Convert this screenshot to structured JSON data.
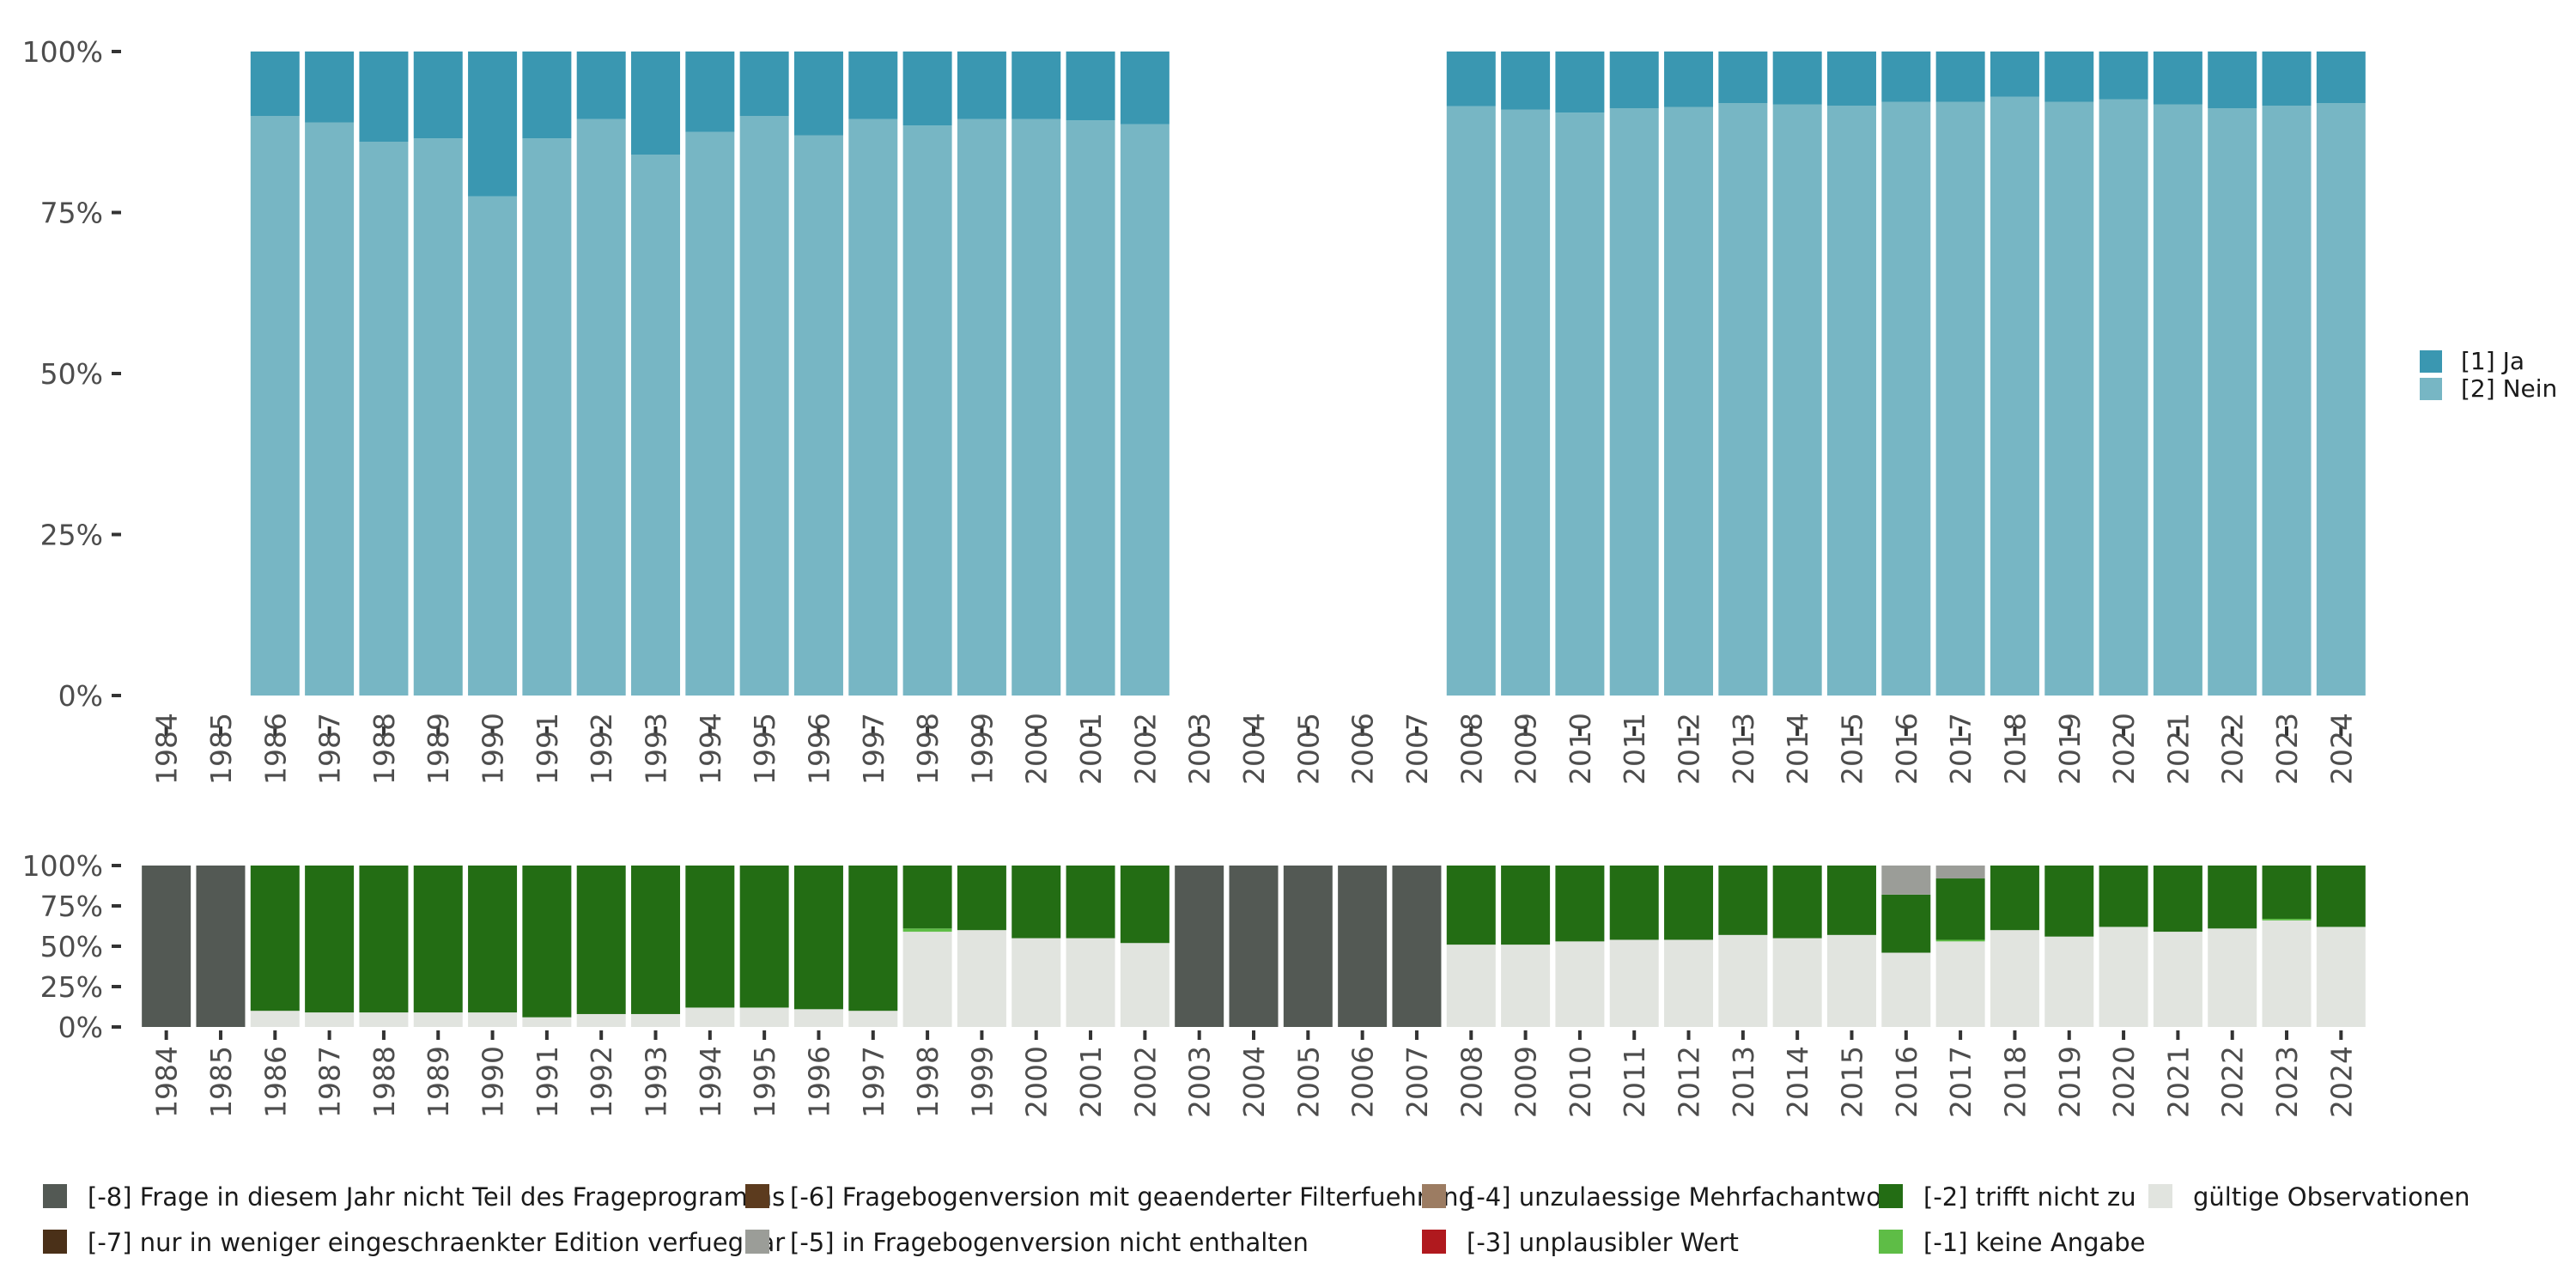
{
  "chart_data": [
    {
      "type": "bar",
      "stacked": true,
      "title": "",
      "xlabel": "",
      "ylabel": "",
      "ylim": [
        0,
        1
      ],
      "y_ticks": [
        "0%",
        "25%",
        "50%",
        "75%",
        "100%"
      ],
      "categories": [
        "1984",
        "1985",
        "1986",
        "1987",
        "1988",
        "1989",
        "1990",
        "1991",
        "1992",
        "1993",
        "1994",
        "1995",
        "1996",
        "1997",
        "1998",
        "1999",
        "2000",
        "2001",
        "2002",
        "2003",
        "2004",
        "2005",
        "2006",
        "2007",
        "2008",
        "2009",
        "2010",
        "2011",
        "2012",
        "2013",
        "2014",
        "2015",
        "2016",
        "2017",
        "2018",
        "2019",
        "2020",
        "2021",
        "2022",
        "2023",
        "2024"
      ],
      "series": [
        {
          "name": "[2] Nein",
          "color": "#77b6c4",
          "values": [
            null,
            null,
            0.9,
            0.89,
            0.86,
            0.865,
            0.775,
            0.865,
            0.895,
            0.84,
            0.875,
            0.9,
            0.87,
            0.895,
            0.885,
            0.895,
            0.895,
            0.893,
            0.887,
            null,
            null,
            null,
            null,
            null,
            0.915,
            0.91,
            0.905,
            0.912,
            0.914,
            0.92,
            0.918,
            0.916,
            0.922,
            0.922,
            0.93,
            0.922,
            0.926,
            0.918,
            0.912,
            0.916,
            0.92
          ]
        },
        {
          "name": "[1] Ja",
          "color": "#3a97b1",
          "values": [
            null,
            null,
            0.1,
            0.11,
            0.14,
            0.135,
            0.225,
            0.135,
            0.105,
            0.16,
            0.125,
            0.1,
            0.13,
            0.105,
            0.115,
            0.105,
            0.105,
            0.107,
            0.113,
            null,
            null,
            null,
            null,
            null,
            0.085,
            0.09,
            0.095,
            0.088,
            0.086,
            0.08,
            0.082,
            0.084,
            0.078,
            0.078,
            0.07,
            0.078,
            0.074,
            0.082,
            0.088,
            0.084,
            0.08
          ]
        }
      ],
      "legend": {
        "position": "right",
        "entries": [
          "[1] Ja",
          "[2] Nein"
        ]
      }
    },
    {
      "type": "bar",
      "stacked": true,
      "title": "",
      "xlabel": "",
      "ylabel": "",
      "ylim": [
        0,
        1
      ],
      "y_ticks": [
        "0%",
        "25%",
        "50%",
        "75%",
        "100%"
      ],
      "categories": [
        "1984",
        "1985",
        "1986",
        "1987",
        "1988",
        "1989",
        "1990",
        "1991",
        "1992",
        "1993",
        "1994",
        "1995",
        "1996",
        "1997",
        "1998",
        "1999",
        "2000",
        "2001",
        "2002",
        "2003",
        "2004",
        "2005",
        "2006",
        "2007",
        "2008",
        "2009",
        "2010",
        "2011",
        "2012",
        "2013",
        "2014",
        "2015",
        "2016",
        "2017",
        "2018",
        "2019",
        "2020",
        "2021",
        "2022",
        "2023",
        "2024"
      ],
      "series": [
        {
          "name": "gültige Observationen",
          "color": "#e1e4df",
          "values": [
            0,
            0,
            0.1,
            0.09,
            0.09,
            0.09,
            0.09,
            0.06,
            0.08,
            0.08,
            0.12,
            0.12,
            0.11,
            0.1,
            0.59,
            0.6,
            0.55,
            0.55,
            0.52,
            0,
            0,
            0,
            0,
            0,
            0.51,
            0.51,
            0.53,
            0.54,
            0.54,
            0.57,
            0.55,
            0.57,
            0.46,
            0.53,
            0.6,
            0.56,
            0.62,
            0.59,
            0.61,
            0.66,
            0.62
          ]
        },
        {
          "name": "[-1] keine Angabe",
          "color": "#5ebd46",
          "values": [
            0,
            0,
            0,
            0,
            0,
            0,
            0,
            0,
            0,
            0,
            0,
            0,
            0,
            0,
            0.02,
            0,
            0,
            0,
            0,
            0,
            0,
            0,
            0,
            0,
            0,
            0,
            0,
            0,
            0,
            0,
            0,
            0,
            0,
            0.01,
            0,
            0,
            0,
            0,
            0,
            0.01,
            0
          ]
        },
        {
          "name": "[-3] unplausibler Wert",
          "color": "#b0191e",
          "values": [
            0,
            0,
            0,
            0,
            0,
            0,
            0,
            0,
            0,
            0,
            0,
            0,
            0,
            0,
            0,
            0,
            0,
            0,
            0,
            0,
            0,
            0,
            0,
            0,
            0,
            0,
            0,
            0,
            0,
            0,
            0,
            0,
            0,
            0,
            0,
            0,
            0,
            0,
            0,
            0,
            0
          ]
        },
        {
          "name": "[-2] trifft nicht zu",
          "color": "#236d14",
          "values": [
            0,
            0,
            0.9,
            0.91,
            0.91,
            0.91,
            0.91,
            0.94,
            0.92,
            0.92,
            0.88,
            0.88,
            0.89,
            0.9,
            0.39,
            0.4,
            0.45,
            0.45,
            0.48,
            0,
            0,
            0,
            0,
            0,
            0.49,
            0.49,
            0.47,
            0.46,
            0.46,
            0.43,
            0.45,
            0.43,
            0.36,
            0.38,
            0.4,
            0.44,
            0.38,
            0.41,
            0.39,
            0.33,
            0.38
          ]
        },
        {
          "name": "[-4] unzulaessige Mehrfachantwort",
          "color": "#9c7c62",
          "values": [
            0,
            0,
            0,
            0,
            0,
            0,
            0,
            0,
            0,
            0,
            0,
            0,
            0,
            0,
            0,
            0,
            0,
            0,
            0,
            0,
            0,
            0,
            0,
            0,
            0,
            0,
            0,
            0,
            0,
            0,
            0,
            0,
            0,
            0,
            0,
            0,
            0,
            0,
            0,
            0,
            0
          ]
        },
        {
          "name": "[-5] in Fragebogenversion nicht enthalten",
          "color": "#9b9d98",
          "values": [
            0,
            0,
            0,
            0,
            0,
            0,
            0,
            0,
            0,
            0,
            0,
            0,
            0,
            0,
            0,
            0,
            0,
            0,
            0,
            0,
            0,
            0,
            0,
            0,
            0,
            0,
            0,
            0,
            0,
            0,
            0,
            0,
            0.18,
            0.08,
            0,
            0,
            0,
            0,
            0,
            0,
            0
          ]
        },
        {
          "name": "[-6] Fragebogenversion mit geaenderter Filterfuehrung",
          "color": "#5c3b1e",
          "values": [
            0,
            0,
            0,
            0,
            0,
            0,
            0,
            0,
            0,
            0,
            0,
            0,
            0,
            0,
            0,
            0,
            0,
            0,
            0,
            0,
            0,
            0,
            0,
            0,
            0,
            0,
            0,
            0,
            0,
            0,
            0,
            0,
            0,
            0,
            0,
            0,
            0,
            0,
            0,
            0,
            0
          ]
        },
        {
          "name": "[-7] nur in weniger eingeschraenkter Edition verfuegbar",
          "color": "#4a3018",
          "values": [
            0,
            0,
            0,
            0,
            0,
            0,
            0,
            0,
            0,
            0,
            0,
            0,
            0,
            0,
            0,
            0,
            0,
            0,
            0,
            0,
            0,
            0,
            0,
            0,
            0,
            0,
            0,
            0,
            0,
            0,
            0,
            0,
            0,
            0,
            0,
            0,
            0,
            0,
            0,
            0,
            0
          ]
        },
        {
          "name": "[-8] Frage in diesem Jahr nicht Teil des Frageprogramms",
          "color": "#535954",
          "values": [
            1,
            1,
            0,
            0,
            0,
            0,
            0,
            0,
            0,
            0,
            0,
            0,
            0,
            0,
            0,
            0,
            0,
            0,
            0,
            1,
            1,
            1,
            1,
            1,
            0,
            0,
            0,
            0,
            0,
            0,
            0,
            0,
            0,
            0,
            0,
            0,
            0,
            0,
            0,
            0,
            0
          ]
        }
      ],
      "legend": {
        "position": "bottom",
        "entries": [
          {
            "label": "[-8] Frage in diesem Jahr nicht Teil des Frageprogramms",
            "color": "#535954"
          },
          {
            "label": "[-6] Fragebogenversion mit geaenderter Filterfuehrung",
            "color": "#5c3b1e"
          },
          {
            "label": "[-4] unzulaessige Mehrfachantwort",
            "color": "#9c7c62"
          },
          {
            "label": "[-2] trifft nicht zu",
            "color": "#236d14"
          },
          {
            "label": "gültige Observationen",
            "color": "#e1e4df"
          },
          {
            "label": "[-7] nur in weniger eingeschraenkter Edition verfuegbar",
            "color": "#4a3018"
          },
          {
            "label": "[-5] in Fragebogenversion nicht enthalten",
            "color": "#9b9d98"
          },
          {
            "label": "[-3] unplausibler Wert",
            "color": "#b0191e"
          },
          {
            "label": "[-1] keine Angabe",
            "color": "#5ebd46"
          }
        ]
      }
    }
  ]
}
